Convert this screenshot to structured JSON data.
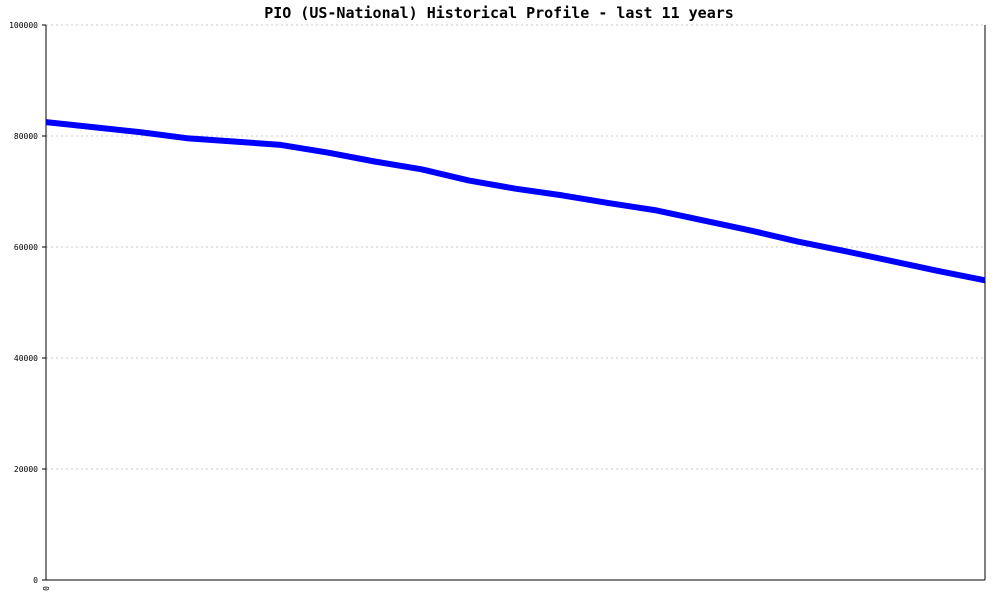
{
  "chart_data": {
    "type": "line",
    "title": "PIO (US-National) Historical Profile - last 11 years",
    "xlabel": "",
    "ylabel": "",
    "ylim": [
      0,
      100000
    ],
    "yticks": [
      0,
      20000,
      40000,
      60000,
      80000,
      100000
    ],
    "ytick_labels": [
      "0",
      "20000",
      "40000",
      "60000",
      "80000",
      "100000"
    ],
    "xtick_labels": [
      "0"
    ],
    "grid": true,
    "series": [
      {
        "color": "#0000ff",
        "x": [
          0,
          0.5,
          1,
          1.5,
          2,
          2.5,
          3,
          3.5,
          4,
          4.5,
          5,
          5.5,
          6,
          6.5,
          7,
          7.5,
          8,
          8.5,
          9,
          9.5,
          10
        ],
        "values": [
          82500,
          81600,
          80700,
          79600,
          79000,
          78400,
          77000,
          75400,
          74000,
          72000,
          70500,
          69300,
          67900,
          66600,
          64800,
          63000,
          61000,
          59300,
          57500,
          55700,
          54000
        ]
      }
    ]
  }
}
